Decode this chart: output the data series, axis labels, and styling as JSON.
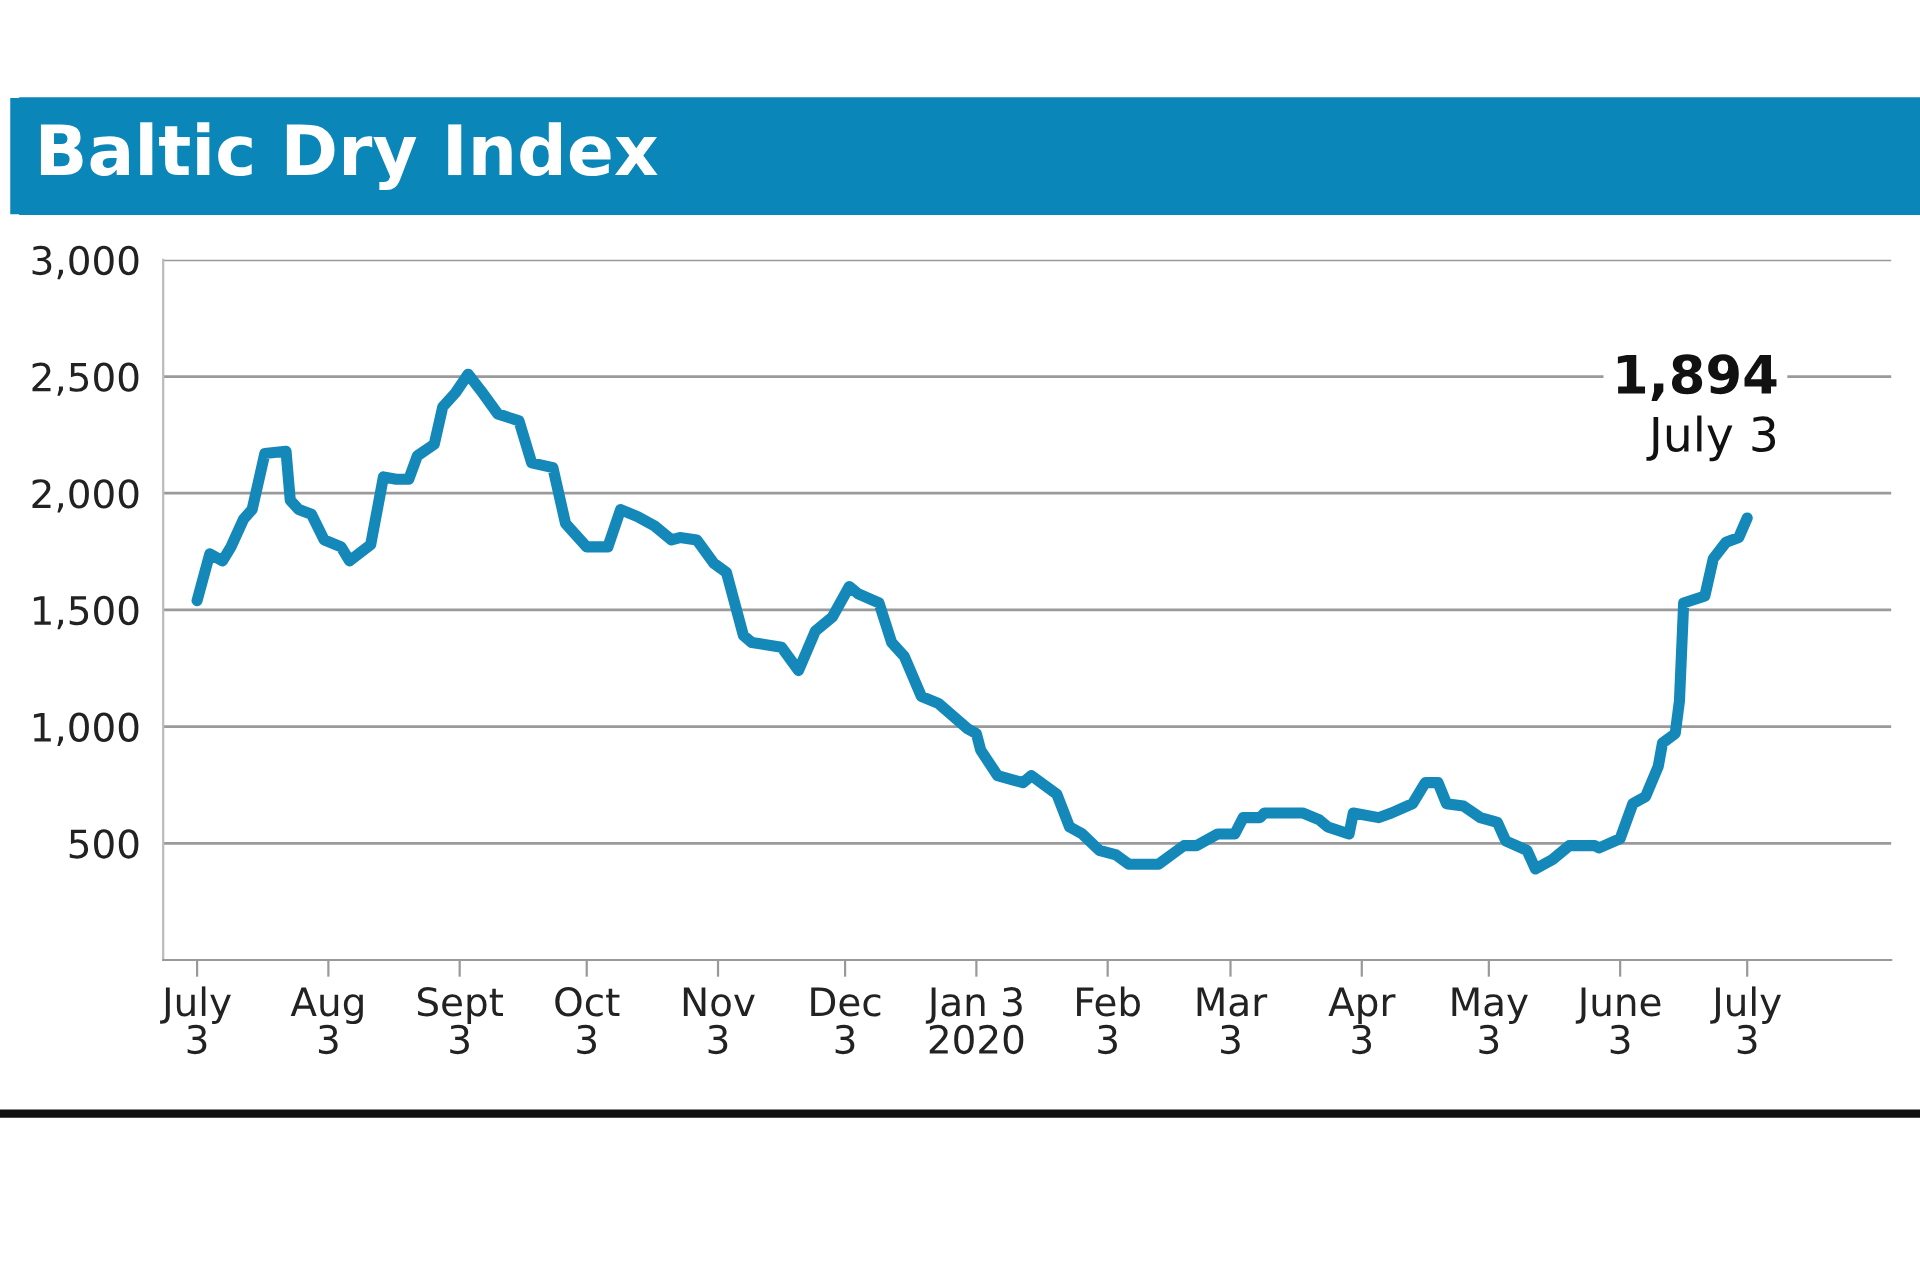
{
  "chart_data": {
    "type": "line",
    "title": "Baltic Dry Index",
    "x": [
      "2019-07-03",
      "2019-07-06",
      "2019-07-09",
      "2019-07-11",
      "2019-07-14",
      "2019-07-16",
      "2019-07-19",
      "2019-07-24",
      "2019-07-25",
      "2019-07-27",
      "2019-07-30",
      "2019-08-02",
      "2019-08-06",
      "2019-08-08",
      "2019-08-13",
      "2019-08-16",
      "2019-08-19",
      "2019-08-22",
      "2019-08-24",
      "2019-08-28",
      "2019-08-30",
      "2019-09-02",
      "2019-09-05",
      "2019-09-08",
      "2019-09-12",
      "2019-09-17",
      "2019-09-20",
      "2019-09-25",
      "2019-09-28",
      "2019-10-03",
      "2019-10-08",
      "2019-10-11",
      "2019-10-15",
      "2019-10-19",
      "2019-10-23",
      "2019-10-25",
      "2019-10-29",
      "2019-11-02",
      "2019-11-05",
      "2019-11-09",
      "2019-11-11",
      "2019-11-18",
      "2019-11-22",
      "2019-11-26",
      "2019-11-30",
      "2019-12-04",
      "2019-12-06",
      "2019-12-11",
      "2019-12-14",
      "2019-12-17",
      "2019-12-21",
      "2019-12-25",
      "2020-01-01",
      "2020-01-03",
      "2020-01-04",
      "2020-01-08",
      "2020-01-12",
      "2020-01-14",
      "2020-01-16",
      "2020-01-22",
      "2020-01-25",
      "2020-01-28",
      "2020-02-01",
      "2020-02-05",
      "2020-02-08",
      "2020-02-15",
      "2020-02-21",
      "2020-02-24",
      "2020-02-29",
      "2020-03-04",
      "2020-03-06",
      "2020-03-10",
      "2020-03-11",
      "2020-03-18",
      "2020-03-20",
      "2020-03-24",
      "2020-03-26",
      "2020-03-31",
      "2020-04-01",
      "2020-04-07",
      "2020-04-10",
      "2020-04-15",
      "2020-04-18",
      "2020-04-21",
      "2020-04-23",
      "2020-04-27",
      "2020-05-01",
      "2020-05-05",
      "2020-05-07",
      "2020-05-12",
      "2020-05-14",
      "2020-05-18",
      "2020-05-22",
      "2020-05-28",
      "2020-05-29",
      "2020-06-03",
      "2020-06-06",
      "2020-06-09",
      "2020-06-12",
      "2020-06-13",
      "2020-06-16",
      "2020-06-17",
      "2020-06-18",
      "2020-06-23",
      "2020-06-25",
      "2020-06-28",
      "2020-07-01",
      "2020-07-03"
    ],
    "series": [
      {
        "color": "#1388b9",
        "values": [
          1540,
          1740,
          1710,
          1770,
          1890,
          1930,
          2170,
          2180,
          1970,
          1930,
          1910,
          1800,
          1770,
          1710,
          1780,
          2070,
          2060,
          2060,
          2160,
          2210,
          2370,
          2430,
          2510,
          2440,
          2340,
          2310,
          2130,
          2110,
          1870,
          1770,
          1770,
          1930,
          1900,
          1860,
          1800,
          1810,
          1800,
          1700,
          1660,
          1390,
          1360,
          1340,
          1240,
          1410,
          1470,
          1600,
          1570,
          1530,
          1360,
          1300,
          1130,
          1100,
          990,
          970,
          900,
          790,
          770,
          760,
          790,
          710,
          570,
          540,
          470,
          450,
          410,
          410,
          490,
          490,
          540,
          540,
          610,
          610,
          630,
          630,
          630,
          600,
          570,
          540,
          630,
          610,
          630,
          670,
          760,
          760,
          670,
          660,
          610,
          590,
          510,
          470,
          390,
          430,
          490,
          490,
          480,
          520,
          670,
          700,
          830,
          930,
          970,
          1110,
          1530,
          1560,
          1720,
          1790,
          1810,
          1894
        ]
      }
    ],
    "ylim": [
      0,
      3000
    ],
    "yticks": [
      500,
      {
        "value": 1000,
        "label": "1,000"
      },
      {
        "value": 1500,
        "label": "1,500"
      },
      {
        "value": 2000,
        "label": "2,000"
      },
      {
        "value": 2500,
        "label": "2,500"
      },
      {
        "value": 3000,
        "label": "3,000"
      }
    ],
    "xlim": [
      "2019-06-25",
      "2020-08-06"
    ],
    "xticks": [
      {
        "value": "2019-07-03",
        "label": "July\n3"
      },
      {
        "value": "2019-08-03",
        "label": "Aug\n3"
      },
      {
        "value": "2019-09-03",
        "label": "Sept\n3"
      },
      {
        "value": "2019-10-03",
        "label": "Oct\n3"
      },
      {
        "value": "2019-11-03",
        "label": "Nov\n3"
      },
      {
        "value": "2019-12-03",
        "label": "Dec\n3"
      },
      {
        "value": "2020-01-03",
        "label": "Jan 3\n2020"
      },
      {
        "value": "2020-02-03",
        "label": "Feb\n3"
      },
      {
        "value": "2020-03-03",
        "label": "Mar\n3"
      },
      {
        "value": "2020-04-03",
        "label": "Apr\n3"
      },
      {
        "value": "2020-05-03",
        "label": "May\n3"
      },
      {
        "value": "2020-06-03",
        "label": "June\n3"
      },
      {
        "value": "2020-07-03",
        "label": "July\n3"
      }
    ],
    "grid": "y",
    "line_style": "solid",
    "annotations": [
      "1,894",
      "July 3"
    ]
  }
}
